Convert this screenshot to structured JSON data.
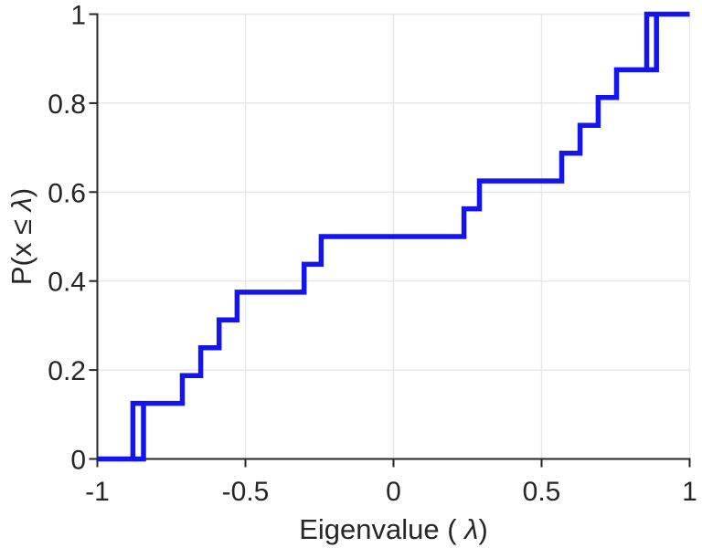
{
  "chart_data": {
    "type": "step-ecdf",
    "title": "",
    "xlabel": "Eigenvalue ( λ)",
    "ylabel": "P(x ≤ λ)",
    "xlim": [
      -1,
      1
    ],
    "ylim": [
      0,
      1
    ],
    "xticks": [
      -1,
      -0.5,
      0,
      0.5,
      1
    ],
    "xtick_labels": [
      "-1",
      "-0.5",
      "0",
      "0.5",
      "1"
    ],
    "yticks": [
      0,
      0.2,
      0.4,
      0.6,
      0.8,
      1
    ],
    "ytick_labels": [
      "0",
      "0.2",
      "0.4",
      "0.6",
      "0.8",
      "1"
    ],
    "grid": true,
    "legend": null,
    "line_color": "#1414F0",
    "axis_color": "#262626",
    "grid_color": "#E8E8E8",
    "eigenvalues": [
      -0.88,
      -0.844,
      -0.713,
      -0.651,
      -0.589,
      -0.528,
      -0.302,
      -0.244,
      0.238,
      0.29,
      0.568,
      0.63,
      0.691,
      0.753,
      0.855,
      0.888
    ],
    "cdf_levels": [
      0.125,
      0.125,
      0.1875,
      0.25,
      0.3125,
      0.375,
      0.4375,
      0.5,
      0.5625,
      0.625,
      0.6875,
      0.75,
      0.8125,
      0.875,
      1.0,
      1.0
    ],
    "main_path": [
      [
        -1,
        0
      ],
      [
        -0.88,
        0
      ],
      [
        -0.88,
        0.125
      ],
      [
        -0.713,
        0.125
      ],
      [
        -0.713,
        0.1875
      ],
      [
        -0.651,
        0.1875
      ],
      [
        -0.651,
        0.25
      ],
      [
        -0.589,
        0.25
      ],
      [
        -0.589,
        0.3125
      ],
      [
        -0.528,
        0.3125
      ],
      [
        -0.528,
        0.375
      ],
      [
        -0.302,
        0.375
      ],
      [
        -0.302,
        0.4375
      ],
      [
        -0.244,
        0.4375
      ],
      [
        -0.244,
        0.5
      ],
      [
        0.238,
        0.5
      ],
      [
        0.238,
        0.5625
      ],
      [
        0.29,
        0.5625
      ],
      [
        0.29,
        0.625
      ],
      [
        0.568,
        0.625
      ],
      [
        0.568,
        0.6875
      ],
      [
        0.63,
        0.6875
      ],
      [
        0.63,
        0.75
      ],
      [
        0.691,
        0.75
      ],
      [
        0.691,
        0.8125
      ],
      [
        0.753,
        0.8125
      ],
      [
        0.753,
        0.875
      ],
      [
        0.855,
        0.875
      ],
      [
        0.855,
        1
      ],
      [
        1,
        1
      ]
    ],
    "detached_segments": [
      [
        [
          -0.88,
          0
        ],
        [
          -0.844,
          0
        ],
        [
          -0.844,
          0.125
        ]
      ],
      [
        [
          0.855,
          0.875
        ],
        [
          0.888,
          0.875
        ],
        [
          0.888,
          1
        ]
      ]
    ]
  }
}
